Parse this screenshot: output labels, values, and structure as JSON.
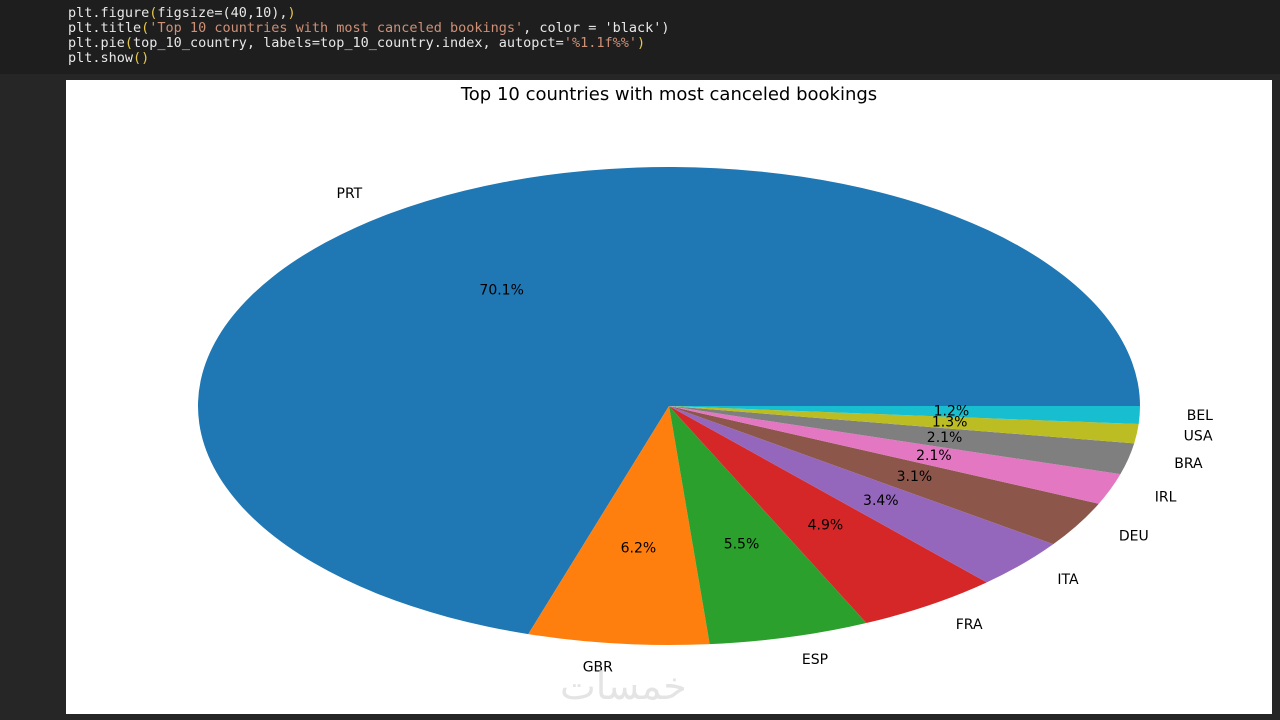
{
  "code": {
    "lines": [
      {
        "before": "plt.figure",
        "p1": "(",
        "inner": "figsize=(40,10),",
        "p2": ")",
        "str": "",
        "after": ""
      },
      {
        "before": "plt.title",
        "p1": "(",
        "inner": "",
        "p2": "",
        "str": "'Top 10 countries with most canceled bookings'",
        "after": ", color = 'black')"
      },
      {
        "before": "plt.pie",
        "p1": "(",
        "inner": "top_10_country, labels=top_10_country.index, autopct=",
        "p2": "",
        "str": "'%1.1f%%'",
        "after": ")"
      },
      {
        "before": "plt.show",
        "p1": "(",
        "inner": "",
        "p2": ")",
        "str": "",
        "after": ""
      }
    ]
  },
  "chart_data": {
    "type": "pie",
    "title": "Top 10 countries with most canceled bookings",
    "labels": [
      "PRT",
      "GBR",
      "ESP",
      "FRA",
      "ITA",
      "DEU",
      "IRL",
      "BRA",
      "USA",
      "BEL"
    ],
    "values": [
      70.1,
      6.2,
      5.5,
      4.9,
      3.4,
      3.1,
      2.1,
      2.1,
      1.3,
      1.2
    ],
    "value_labels": [
      "70.1%",
      "6.2%",
      "5.5%",
      "4.9%",
      "3.4%",
      "3.1%",
      "2.1%",
      "2.1%",
      "1.3%",
      "1.2%"
    ],
    "colors": [
      "#1f77b4",
      "#ff7f0e",
      "#2ca02c",
      "#d62728",
      "#9467bd",
      "#8c564b",
      "#e377c2",
      "#7f7f7f",
      "#bcbd22",
      "#17becf"
    ],
    "start_angle": 0,
    "direction": "counterclockwise"
  },
  "watermark": "خمسات"
}
